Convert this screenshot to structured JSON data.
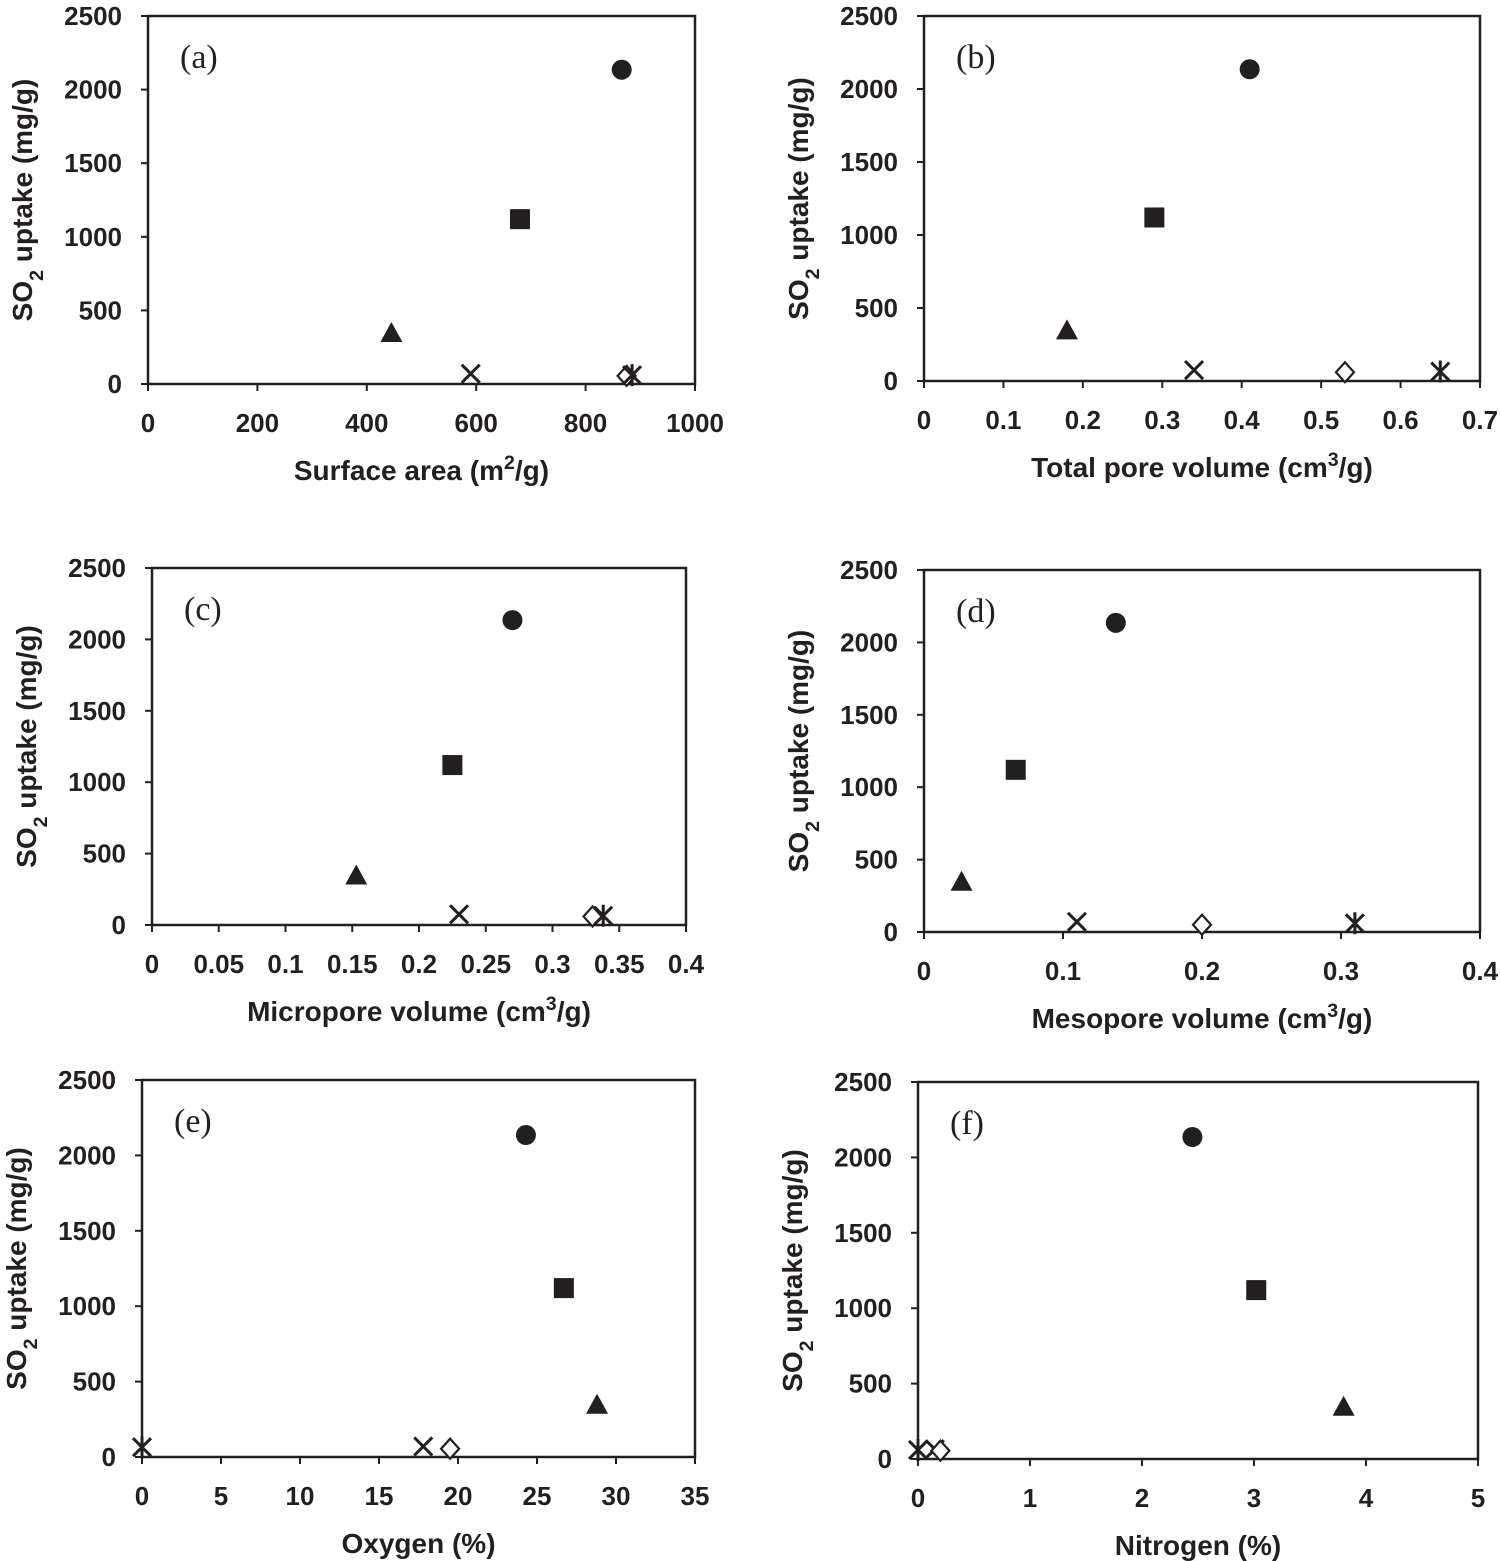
{
  "colors": {
    "ink": "#231f20",
    "background": "#ffffff"
  },
  "chart_data": [
    {
      "type": "scatter",
      "panel_label": "(a)",
      "xlabel": "Surface area (m²/g)",
      "ylabel": "SO₂ uptake (mg/g)",
      "xlim": [
        0,
        1000
      ],
      "ylim": [
        0,
        2500
      ],
      "xticks": [
        0,
        200,
        400,
        600,
        800,
        1000
      ],
      "yticks": [
        0,
        500,
        1000,
        1500,
        2000,
        2500
      ],
      "xtick_labels": [
        "0",
        "200",
        "400",
        "600",
        "800",
        "1000"
      ],
      "ytick_labels": [
        "0",
        "500",
        "1000",
        "1500",
        "2000",
        "2500"
      ],
      "grid": false,
      "points": [
        {
          "marker": "circle",
          "x": 866,
          "y": 2135
        },
        {
          "marker": "square",
          "x": 680,
          "y": 1120
        },
        {
          "marker": "triangle",
          "x": 445,
          "y": 340
        },
        {
          "marker": "x",
          "x": 590,
          "y": 70
        },
        {
          "marker": "diamond",
          "x": 875,
          "y": 55
        },
        {
          "marker": "star",
          "x": 885,
          "y": 60
        }
      ]
    },
    {
      "type": "scatter",
      "panel_label": "(b)",
      "xlabel": "Total pore volume (cm³/g)",
      "ylabel": "SO₂ uptake (mg/g)",
      "xlim": [
        0,
        0.7
      ],
      "ylim": [
        0,
        2500
      ],
      "xticks": [
        0,
        0.1,
        0.2,
        0.3,
        0.4,
        0.5,
        0.6,
        0.7
      ],
      "yticks": [
        0,
        500,
        1000,
        1500,
        2000,
        2500
      ],
      "xtick_labels": [
        "0",
        "0.1",
        "0.2",
        "0.3",
        "0.4",
        "0.5",
        "0.6",
        "0.7"
      ],
      "ytick_labels": [
        "0",
        "500",
        "1000",
        "1500",
        "2000",
        "2500"
      ],
      "grid": false,
      "points": [
        {
          "marker": "circle",
          "x": 0.41,
          "y": 2135
        },
        {
          "marker": "square",
          "x": 0.29,
          "y": 1120
        },
        {
          "marker": "triangle",
          "x": 0.18,
          "y": 340
        },
        {
          "marker": "x",
          "x": 0.34,
          "y": 75
        },
        {
          "marker": "diamond",
          "x": 0.53,
          "y": 60
        },
        {
          "marker": "star",
          "x": 0.65,
          "y": 65
        }
      ]
    },
    {
      "type": "scatter",
      "panel_label": "(c)",
      "xlabel": "Micropore volume (cm³/g)",
      "ylabel": "SO₂ uptake (mg/g)",
      "xlim": [
        0,
        0.4
      ],
      "ylim": [
        0,
        2500
      ],
      "xticks": [
        0,
        0.05,
        0.1,
        0.15,
        0.2,
        0.25,
        0.3,
        0.35,
        0.4
      ],
      "yticks": [
        0,
        500,
        1000,
        1500,
        2000,
        2500
      ],
      "xtick_labels": [
        "0",
        "0.05",
        "0.1",
        "0.15",
        "0.2",
        "0.25",
        "0.3",
        "0.35",
        "0.4"
      ],
      "ytick_labels": [
        "0",
        "500",
        "1000",
        "1500",
        "2000",
        "2500"
      ],
      "grid": false,
      "points": [
        {
          "marker": "circle",
          "x": 0.27,
          "y": 2135
        },
        {
          "marker": "square",
          "x": 0.225,
          "y": 1120
        },
        {
          "marker": "triangle",
          "x": 0.153,
          "y": 340
        },
        {
          "marker": "x",
          "x": 0.23,
          "y": 75
        },
        {
          "marker": "diamond",
          "x": 0.33,
          "y": 60
        },
        {
          "marker": "star",
          "x": 0.338,
          "y": 65
        }
      ]
    },
    {
      "type": "scatter",
      "panel_label": "(d)",
      "xlabel": "Mesopore volume (cm³/g)",
      "ylabel": "SO₂ uptake (mg/g)",
      "xlim": [
        0,
        0.4
      ],
      "ylim": [
        0,
        2500
      ],
      "xticks": [
        0,
        0.1,
        0.2,
        0.3,
        0.4
      ],
      "yticks": [
        0,
        500,
        1000,
        1500,
        2000,
        2500
      ],
      "xtick_labels": [
        "0",
        "0.1",
        "0.2",
        "0.3",
        "0.4"
      ],
      "ytick_labels": [
        "0",
        "500",
        "1000",
        "1500",
        "2000",
        "2500"
      ],
      "grid": false,
      "points": [
        {
          "marker": "circle",
          "x": 0.138,
          "y": 2135
        },
        {
          "marker": "square",
          "x": 0.066,
          "y": 1120
        },
        {
          "marker": "triangle",
          "x": 0.027,
          "y": 340
        },
        {
          "marker": "x",
          "x": 0.11,
          "y": 70
        },
        {
          "marker": "diamond",
          "x": 0.2,
          "y": 50
        },
        {
          "marker": "star",
          "x": 0.31,
          "y": 60
        }
      ]
    },
    {
      "type": "scatter",
      "panel_label": "(e)",
      "xlabel": "Oxygen (%)",
      "ylabel": "SO₂ uptake (mg/g)",
      "xlim": [
        0,
        35
      ],
      "ylim": [
        0,
        2500
      ],
      "xticks": [
        0,
        5,
        10,
        15,
        20,
        25,
        30,
        35
      ],
      "yticks": [
        0,
        500,
        1000,
        1500,
        2000,
        2500
      ],
      "xtick_labels": [
        "0",
        "5",
        "10",
        "15",
        "20",
        "25",
        "30",
        "35"
      ],
      "ytick_labels": [
        "0",
        "500",
        "1000",
        "1500",
        "2000",
        "2500"
      ],
      "grid": false,
      "points": [
        {
          "marker": "circle",
          "x": 24.3,
          "y": 2135
        },
        {
          "marker": "square",
          "x": 26.7,
          "y": 1120
        },
        {
          "marker": "triangle",
          "x": 28.8,
          "y": 340
        },
        {
          "marker": "x",
          "x": 17.8,
          "y": 70
        },
        {
          "marker": "diamond",
          "x": 19.5,
          "y": 55
        },
        {
          "marker": "star",
          "x": 0,
          "y": 65
        }
      ]
    },
    {
      "type": "scatter",
      "panel_label": "(f)",
      "xlabel": "Nitrogen (%)",
      "ylabel": "SO₂ uptake (mg/g)",
      "xlim": [
        0,
        5
      ],
      "ylim": [
        0,
        2500
      ],
      "xticks": [
        0,
        1,
        2,
        3,
        4,
        5
      ],
      "yticks": [
        0,
        500,
        1000,
        1500,
        2000,
        2500
      ],
      "xtick_labels": [
        "0",
        "1",
        "2",
        "3",
        "4",
        "5"
      ],
      "ytick_labels": [
        "0",
        "500",
        "1000",
        "1500",
        "2000",
        "2500"
      ],
      "grid": false,
      "points": [
        {
          "marker": "circle",
          "x": 2.45,
          "y": 2135
        },
        {
          "marker": "square",
          "x": 3.02,
          "y": 1120
        },
        {
          "marker": "triangle",
          "x": 3.8,
          "y": 340
        },
        {
          "marker": "x",
          "x": 0.15,
          "y": 65
        },
        {
          "marker": "diamond",
          "x": 0.2,
          "y": 55
        },
        {
          "marker": "star",
          "x": 0,
          "y": 60
        }
      ]
    }
  ]
}
